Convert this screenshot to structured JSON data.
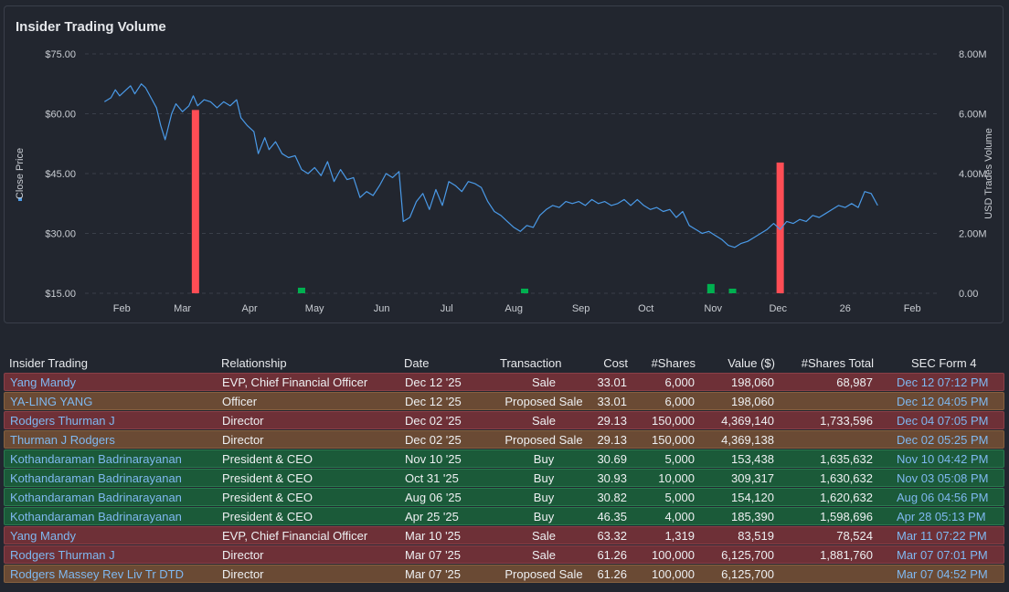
{
  "chart": {
    "title": "Insider Trading Volume",
    "left_axis_label": "Close Price",
    "right_axis_label": "USD Trades Volume"
  },
  "colors": {
    "background": "#22262f",
    "price_line": "#4a9ae8",
    "sale_bar": "#ff4d55",
    "buy_bar": "#00b050",
    "sale_row": "#6e3037",
    "proposed_row": "#6a4a34",
    "buy_row": "#1b5a39",
    "link": "#7fb8f0"
  },
  "chart_data": {
    "type": "line",
    "title": "Insider Trading Volume",
    "ylabel": "Close Price",
    "y2label": "USD Trades Volume",
    "ylim": [
      15,
      75
    ],
    "y2lim": [
      0,
      8000000
    ],
    "y_ticks": [
      "$15.00",
      "$30.00",
      "$45.00",
      "$60.00",
      "$75.00"
    ],
    "y_tick_values": [
      15,
      30,
      45,
      60,
      75
    ],
    "y2_ticks": [
      "0.00",
      "2.00M",
      "4.00M",
      "6.00M",
      "8.00M"
    ],
    "y2_tick_values": [
      0,
      2000000,
      4000000,
      6000000,
      8000000
    ],
    "xlim": [
      "2025-01-15",
      "2026-02-14"
    ],
    "x_ticks": [
      {
        "label": "Feb",
        "date": "2025-02-01"
      },
      {
        "label": "Mar",
        "date": "2025-03-01"
      },
      {
        "label": "Apr",
        "date": "2025-04-01"
      },
      {
        "label": "May",
        "date": "2025-05-01"
      },
      {
        "label": "Jun",
        "date": "2025-06-01"
      },
      {
        "label": "Jul",
        "date": "2025-07-01"
      },
      {
        "label": "Aug",
        "date": "2025-08-01"
      },
      {
        "label": "Sep",
        "date": "2025-09-01"
      },
      {
        "label": "Oct",
        "date": "2025-10-01"
      },
      {
        "label": "Nov",
        "date": "2025-11-01"
      },
      {
        "label": "Dec",
        "date": "2025-12-01"
      },
      {
        "label": "26",
        "date": "2026-01-01"
      },
      {
        "label": "Feb",
        "date": "2026-02-01"
      }
    ],
    "grid": true,
    "series": [
      {
        "type": "line",
        "axis": "left",
        "values": [
          [
            "2025-01-24",
            63.0
          ],
          [
            "2025-01-27",
            64.0
          ],
          [
            "2025-01-29",
            66.0
          ],
          [
            "2025-01-31",
            64.5
          ],
          [
            "2025-02-03",
            66.0
          ],
          [
            "2025-02-05",
            67.0
          ],
          [
            "2025-02-07",
            65.0
          ],
          [
            "2025-02-10",
            67.5
          ],
          [
            "2025-02-12",
            66.5
          ],
          [
            "2025-02-14",
            64.5
          ],
          [
            "2025-02-17",
            61.5
          ],
          [
            "2025-02-19",
            57.0
          ],
          [
            "2025-02-21",
            53.5
          ],
          [
            "2025-02-24",
            60.0
          ],
          [
            "2025-02-26",
            62.5
          ],
          [
            "2025-03-01",
            60.5
          ],
          [
            "2025-03-04",
            62.0
          ],
          [
            "2025-03-06",
            64.5
          ],
          [
            "2025-03-08",
            62.0
          ],
          [
            "2025-03-11",
            63.5
          ],
          [
            "2025-03-14",
            63.0
          ],
          [
            "2025-03-17",
            61.5
          ],
          [
            "2025-03-20",
            63.0
          ],
          [
            "2025-03-23",
            62.0
          ],
          [
            "2025-03-26",
            63.5
          ],
          [
            "2025-03-28",
            59.0
          ],
          [
            "2025-03-31",
            57.0
          ],
          [
            "2025-04-03",
            55.5
          ],
          [
            "2025-04-05",
            50.0
          ],
          [
            "2025-04-08",
            54.0
          ],
          [
            "2025-04-10",
            51.0
          ],
          [
            "2025-04-13",
            53.0
          ],
          [
            "2025-04-16",
            50.0
          ],
          [
            "2025-04-19",
            49.0
          ],
          [
            "2025-04-22",
            49.5
          ],
          [
            "2025-04-25",
            46.0
          ],
          [
            "2025-04-28",
            45.0
          ],
          [
            "2025-05-01",
            46.5
          ],
          [
            "2025-05-04",
            44.5
          ],
          [
            "2025-05-07",
            48.0
          ],
          [
            "2025-05-10",
            43.0
          ],
          [
            "2025-05-13",
            46.0
          ],
          [
            "2025-05-16",
            43.5
          ],
          [
            "2025-05-19",
            44.0
          ],
          [
            "2025-05-22",
            39.0
          ],
          [
            "2025-05-25",
            40.5
          ],
          [
            "2025-05-28",
            39.5
          ],
          [
            "2025-05-31",
            42.0
          ],
          [
            "2025-06-03",
            45.0
          ],
          [
            "2025-06-06",
            44.0
          ],
          [
            "2025-06-09",
            45.5
          ],
          [
            "2025-06-11",
            33.0
          ],
          [
            "2025-06-14",
            34.0
          ],
          [
            "2025-06-17",
            38.0
          ],
          [
            "2025-06-20",
            40.0
          ],
          [
            "2025-06-23",
            36.0
          ],
          [
            "2025-06-26",
            41.0
          ],
          [
            "2025-06-29",
            37.0
          ],
          [
            "2025-07-02",
            43.0
          ],
          [
            "2025-07-05",
            42.0
          ],
          [
            "2025-07-08",
            40.5
          ],
          [
            "2025-07-11",
            43.0
          ],
          [
            "2025-07-14",
            42.5
          ],
          [
            "2025-07-17",
            41.5
          ],
          [
            "2025-07-20",
            38.0
          ],
          [
            "2025-07-23",
            35.5
          ],
          [
            "2025-07-26",
            34.5
          ],
          [
            "2025-07-29",
            33.0
          ],
          [
            "2025-08-01",
            31.5
          ],
          [
            "2025-08-04",
            30.5
          ],
          [
            "2025-08-07",
            32.0
          ],
          [
            "2025-08-10",
            31.5
          ],
          [
            "2025-08-13",
            34.5
          ],
          [
            "2025-08-16",
            36.0
          ],
          [
            "2025-08-19",
            37.0
          ],
          [
            "2025-08-22",
            36.5
          ],
          [
            "2025-08-25",
            38.0
          ],
          [
            "2025-08-28",
            37.5
          ],
          [
            "2025-08-31",
            38.0
          ],
          [
            "2025-09-03",
            37.0
          ],
          [
            "2025-09-06",
            38.5
          ],
          [
            "2025-09-09",
            37.5
          ],
          [
            "2025-09-12",
            38.0
          ],
          [
            "2025-09-15",
            37.0
          ],
          [
            "2025-09-18",
            37.5
          ],
          [
            "2025-09-21",
            38.5
          ],
          [
            "2025-09-24",
            37.0
          ],
          [
            "2025-09-27",
            38.5
          ],
          [
            "2025-09-30",
            37.0
          ],
          [
            "2025-10-03",
            36.0
          ],
          [
            "2025-10-06",
            36.5
          ],
          [
            "2025-10-09",
            35.5
          ],
          [
            "2025-10-12",
            36.0
          ],
          [
            "2025-10-15",
            34.0
          ],
          [
            "2025-10-18",
            35.5
          ],
          [
            "2025-10-21",
            32.0
          ],
          [
            "2025-10-24",
            31.0
          ],
          [
            "2025-10-27",
            30.0
          ],
          [
            "2025-10-30",
            30.5
          ],
          [
            "2025-11-02",
            29.5
          ],
          [
            "2025-11-05",
            28.5
          ],
          [
            "2025-11-08",
            27.0
          ],
          [
            "2025-11-11",
            26.5
          ],
          [
            "2025-11-14",
            27.5
          ],
          [
            "2025-11-17",
            28.0
          ],
          [
            "2025-11-20",
            29.0
          ],
          [
            "2025-11-23",
            30.0
          ],
          [
            "2025-11-26",
            31.0
          ],
          [
            "2025-11-29",
            32.5
          ],
          [
            "2025-12-02",
            31.0
          ],
          [
            "2025-12-05",
            33.0
          ],
          [
            "2025-12-08",
            32.5
          ],
          [
            "2025-12-11",
            33.5
          ],
          [
            "2025-12-14",
            33.0
          ],
          [
            "2025-12-17",
            34.5
          ],
          [
            "2025-12-20",
            34.0
          ],
          [
            "2025-12-23",
            35.0
          ],
          [
            "2025-12-26",
            36.0
          ],
          [
            "2025-12-29",
            37.0
          ],
          [
            "2026-01-01",
            36.5
          ],
          [
            "2026-01-04",
            37.5
          ],
          [
            "2026-01-07",
            36.5
          ],
          [
            "2026-01-10",
            40.5
          ],
          [
            "2026-01-13",
            40.0
          ],
          [
            "2026-01-16",
            37.0
          ]
        ]
      },
      {
        "type": "bar",
        "axis": "right",
        "name": "Sale",
        "values": [
          [
            "2025-03-07",
            6125700
          ],
          [
            "2025-12-02",
            4369140
          ]
        ]
      },
      {
        "type": "bar",
        "axis": "right",
        "name": "Buy",
        "values": [
          [
            "2025-04-25",
            185390
          ],
          [
            "2025-08-06",
            154120
          ],
          [
            "2025-10-31",
            309317
          ],
          [
            "2025-11-10",
            153438
          ]
        ]
      }
    ]
  },
  "table": {
    "headers": {
      "insider": "Insider Trading",
      "relationship": "Relationship",
      "date": "Date",
      "transaction": "Transaction",
      "cost": "Cost",
      "shares": "#Shares",
      "value": "Value ($)",
      "shares_total": "#Shares Total",
      "sec_form": "SEC Form 4"
    },
    "rows": [
      {
        "type": "sale",
        "insider": "Yang Mandy",
        "relationship": "EVP, Chief Financial Officer",
        "date": "Dec 12 '25",
        "transaction": "Sale",
        "cost": "33.01",
        "shares": "6,000",
        "value": "198,060",
        "shares_total": "68,987",
        "sec_form": "Dec 12 07:12 PM"
      },
      {
        "type": "proposed",
        "insider": "YA-LING YANG",
        "relationship": "Officer",
        "date": "Dec 12 '25",
        "transaction": "Proposed Sale",
        "cost": "33.01",
        "shares": "6,000",
        "value": "198,060",
        "shares_total": "",
        "sec_form": "Dec 12 04:05 PM"
      },
      {
        "type": "sale",
        "insider": "Rodgers Thurman J",
        "relationship": "Director",
        "date": "Dec 02 '25",
        "transaction": "Sale",
        "cost": "29.13",
        "shares": "150,000",
        "value": "4,369,140",
        "shares_total": "1,733,596",
        "sec_form": "Dec 04 07:05 PM"
      },
      {
        "type": "proposed",
        "insider": "Thurman J Rodgers",
        "relationship": "Director",
        "date": "Dec 02 '25",
        "transaction": "Proposed Sale",
        "cost": "29.13",
        "shares": "150,000",
        "value": "4,369,138",
        "shares_total": "",
        "sec_form": "Dec 02 05:25 PM"
      },
      {
        "type": "buy",
        "insider": "Kothandaraman Badrinarayanan",
        "relationship": "President & CEO",
        "date": "Nov 10 '25",
        "transaction": "Buy",
        "cost": "30.69",
        "shares": "5,000",
        "value": "153,438",
        "shares_total": "1,635,632",
        "sec_form": "Nov 10 04:42 PM"
      },
      {
        "type": "buy",
        "insider": "Kothandaraman Badrinarayanan",
        "relationship": "President & CEO",
        "date": "Oct 31 '25",
        "transaction": "Buy",
        "cost": "30.93",
        "shares": "10,000",
        "value": "309,317",
        "shares_total": "1,630,632",
        "sec_form": "Nov 03 05:08 PM"
      },
      {
        "type": "buy",
        "insider": "Kothandaraman Badrinarayanan",
        "relationship": "President & CEO",
        "date": "Aug 06 '25",
        "transaction": "Buy",
        "cost": "30.82",
        "shares": "5,000",
        "value": "154,120",
        "shares_total": "1,620,632",
        "sec_form": "Aug 06 04:56 PM"
      },
      {
        "type": "buy",
        "insider": "Kothandaraman Badrinarayanan",
        "relationship": "President & CEO",
        "date": "Apr 25 '25",
        "transaction": "Buy",
        "cost": "46.35",
        "shares": "4,000",
        "value": "185,390",
        "shares_total": "1,598,696",
        "sec_form": "Apr 28 05:13 PM"
      },
      {
        "type": "sale",
        "insider": "Yang Mandy",
        "relationship": "EVP, Chief Financial Officer",
        "date": "Mar 10 '25",
        "transaction": "Sale",
        "cost": "63.32",
        "shares": "1,319",
        "value": "83,519",
        "shares_total": "78,524",
        "sec_form": "Mar 11 07:22 PM"
      },
      {
        "type": "sale",
        "insider": "Rodgers Thurman J",
        "relationship": "Director",
        "date": "Mar 07 '25",
        "transaction": "Sale",
        "cost": "61.26",
        "shares": "100,000",
        "value": "6,125,700",
        "shares_total": "1,881,760",
        "sec_form": "Mar 07 07:01 PM"
      },
      {
        "type": "proposed",
        "insider": "Rodgers Massey Rev Liv Tr DTD",
        "relationship": "Director",
        "date": "Mar 07 '25",
        "transaction": "Proposed Sale",
        "cost": "61.26",
        "shares": "100,000",
        "value": "6,125,700",
        "shares_total": "",
        "sec_form": "Mar 07 04:52 PM"
      }
    ]
  }
}
